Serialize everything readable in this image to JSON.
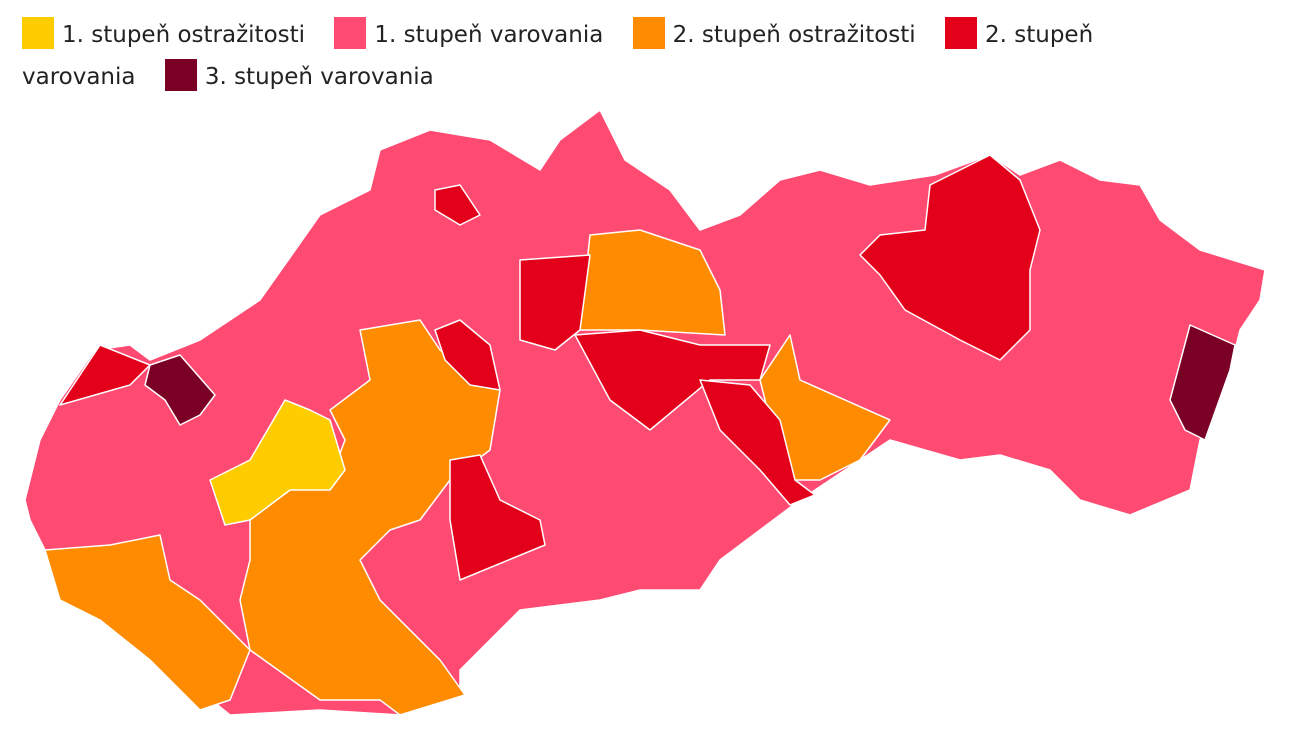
{
  "legend": {
    "items": [
      {
        "label": "1. stupeň ostražitosti",
        "color": "#ffcc00"
      },
      {
        "label": "1. stupeň varovania",
        "color": "#ff4a72"
      },
      {
        "label": "2. stupeň ostražitosti",
        "color": "#ff8c00"
      },
      {
        "label": "2. stupeň varovania",
        "color": "#e3001b"
      },
      {
        "label": "3. stupeň varovania",
        "color": "#7a0025"
      }
    ]
  }
}
